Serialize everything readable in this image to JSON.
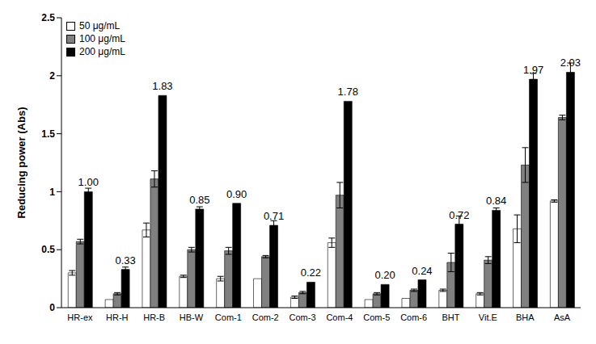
{
  "chart_data": {
    "type": "bar",
    "y_label": "Reducing power (Abs)",
    "categories": [
      "HR-ex",
      "HR-H",
      "HR-B",
      "HB-W",
      "Com-1",
      "Com-2",
      "Com-3",
      "Com-4",
      "Com-5",
      "Com-6",
      "BHT",
      "Vit.E",
      "BHA",
      "AsA"
    ],
    "series": [
      {
        "name": "50 μg/mL",
        "color": "#ffffff",
        "values": [
          0.3,
          0.07,
          0.67,
          0.27,
          0.25,
          0.25,
          0.09,
          0.56,
          0.07,
          0.08,
          0.15,
          0.12,
          0.68,
          0.92
        ],
        "errors": [
          0.02,
          0,
          0.06,
          0.01,
          0.02,
          0,
          0.01,
          0.04,
          0,
          0,
          0.01,
          0.01,
          0.12,
          0.01
        ]
      },
      {
        "name": "100 μg/mL",
        "color": "#808080",
        "values": [
          0.57,
          0.12,
          1.11,
          0.5,
          0.49,
          0.44,
          0.13,
          0.97,
          0.12,
          0.15,
          0.39,
          0.41,
          1.23,
          1.64
        ],
        "errors": [
          0.02,
          0.01,
          0.07,
          0.02,
          0.03,
          0.01,
          0.01,
          0.11,
          0.01,
          0.01,
          0.08,
          0.03,
          0.15,
          0.02
        ]
      },
      {
        "name": "200 μg/mL",
        "color": "#000000",
        "values": [
          1.0,
          0.33,
          1.83,
          0.85,
          0.9,
          0.71,
          0.22,
          1.78,
          0.2,
          0.24,
          0.72,
          0.84,
          1.97,
          2.03
        ],
        "errors": [
          0.03,
          0.02,
          0,
          0.02,
          0,
          0.04,
          0,
          0,
          0,
          0,
          0.07,
          0.02,
          0.05,
          0.08
        ],
        "data_labels": true,
        "value_labels": [
          "1.00",
          "0.33",
          "1.83",
          "0.85",
          "0.90",
          "0.71",
          "0.22",
          "1.78",
          "0.20",
          "0.24",
          "0.72",
          "0.84",
          "1.97",
          "2.03"
        ]
      }
    ],
    "ylim": [
      0,
      2.5
    ],
    "yticks": [
      0,
      0.5,
      1,
      1.5,
      2,
      2.5
    ],
    "grid": false,
    "legend": "top-left"
  }
}
